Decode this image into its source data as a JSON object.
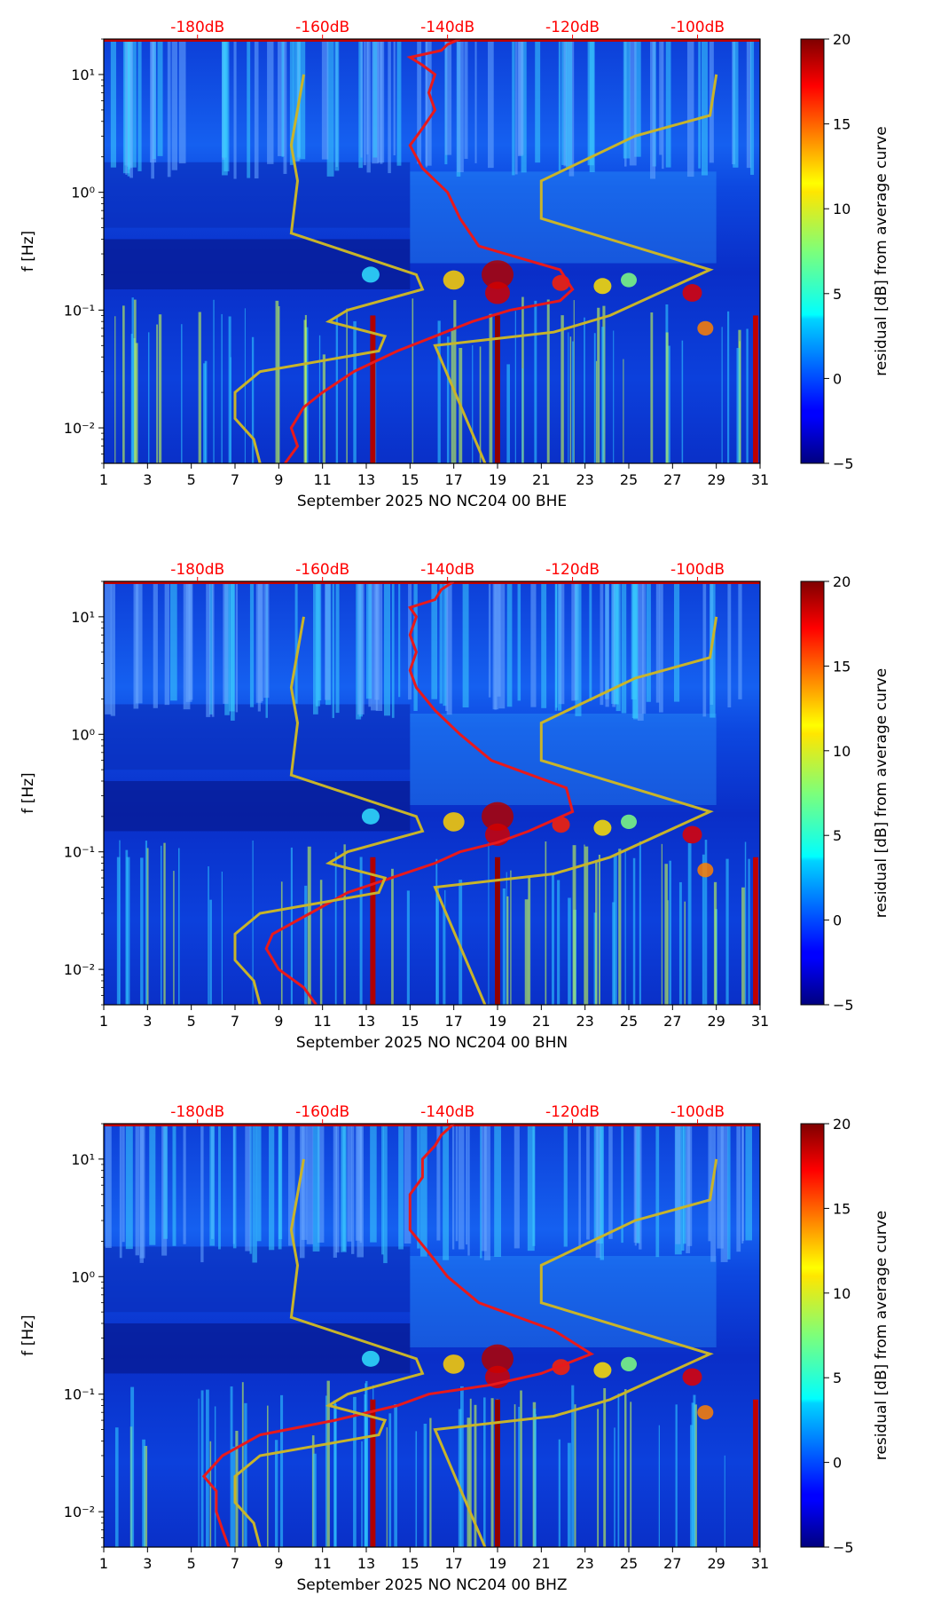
{
  "chart_data": [
    {
      "type": "heatmap",
      "title": "",
      "xlabel": "September 2025 NO NC204 00 BHE",
      "ylabel": "f [Hz]",
      "x_ticks": [
        "1",
        "3",
        "5",
        "7",
        "9",
        "11",
        "13",
        "15",
        "17",
        "19",
        "21",
        "23",
        "25",
        "27",
        "29",
        "31"
      ],
      "xlim": [
        1,
        31
      ],
      "y_scale": "log",
      "ylim": [
        0.005,
        20
      ],
      "y_ticks": [
        {
          "value": 0.01,
          "label": "10⁻²"
        },
        {
          "value": 0.1,
          "label": "10⁻¹"
        },
        {
          "value": 1,
          "label": "10⁰"
        },
        {
          "value": 10,
          "label": "10¹"
        }
      ],
      "top_axis_ticks": [
        "-180dB",
        "-160dB",
        "-140dB",
        "-120dB",
        "-100dB"
      ],
      "top_axis_db_values": [
        -180,
        -160,
        -140,
        -120,
        -100
      ],
      "colorbar": {
        "label": "residual [dB] from average curve",
        "range": [
          -5,
          20
        ],
        "ticks": [
          "−5",
          "0",
          "5",
          "10",
          "15",
          "20"
        ]
      },
      "series": [
        {
          "name": "average PSD (red)",
          "color": "#e8191b",
          "db": [
            -166,
            -164,
            -165,
            -163,
            -160,
            -155,
            -148,
            -142,
            -136,
            -130,
            -122,
            -120,
            -122,
            -135,
            -138,
            -140,
            -144,
            -146,
            -144,
            -142,
            -143,
            -142,
            -144,
            -146,
            -141,
            -140,
            -138
          ],
          "freq": [
            0.005,
            0.007,
            0.01,
            0.015,
            0.02,
            0.03,
            0.045,
            0.06,
            0.08,
            0.1,
            0.12,
            0.15,
            0.22,
            0.35,
            0.6,
            1.0,
            1.6,
            2.5,
            3.5,
            5,
            7,
            10,
            12,
            14,
            16,
            18,
            20
          ]
        },
        {
          "name": "NLNM (olive)",
          "color": "#c8b42a",
          "db": [
            -170,
            -171,
            -174,
            -174,
            -170,
            -151,
            -150,
            -159,
            -156,
            -144,
            -145,
            -165,
            -164,
            -165,
            -163
          ],
          "freq": [
            0.005,
            0.008,
            0.012,
            0.02,
            0.03,
            0.045,
            0.06,
            0.08,
            0.1,
            0.15,
            0.2,
            0.45,
            1.25,
            2.5,
            10
          ]
        },
        {
          "name": "NHNM (olive)",
          "color": "#c8b42a",
          "db": [
            -134,
            -142,
            -123,
            -114,
            -98,
            -125,
            -125,
            -110,
            -98,
            -97
          ],
          "freq": [
            0.005,
            0.05,
            0.065,
            0.09,
            0.22,
            0.6,
            1.25,
            3,
            4.5,
            10
          ]
        }
      ]
    },
    {
      "type": "heatmap",
      "title": "",
      "xlabel": "September 2025 NO NC204 00 BHN",
      "ylabel": "f [Hz]",
      "x_ticks": [
        "1",
        "3",
        "5",
        "7",
        "9",
        "11",
        "13",
        "15",
        "17",
        "19",
        "21",
        "23",
        "25",
        "27",
        "29",
        "31"
      ],
      "xlim": [
        1,
        31
      ],
      "y_scale": "log",
      "ylim": [
        0.005,
        20
      ],
      "y_ticks": [
        {
          "value": 0.01,
          "label": "10⁻²"
        },
        {
          "value": 0.1,
          "label": "10⁻¹"
        },
        {
          "value": 1,
          "label": "10⁰"
        },
        {
          "value": 10,
          "label": "10¹"
        }
      ],
      "top_axis_ticks": [
        "-180dB",
        "-160dB",
        "-140dB",
        "-120dB",
        "-100dB"
      ],
      "top_axis_db_values": [
        -180,
        -160,
        -140,
        -120,
        -100
      ],
      "colorbar": {
        "label": "residual [dB] from average curve",
        "range": [
          -5,
          20
        ],
        "ticks": [
          "−5",
          "0",
          "5",
          "10",
          "15",
          "20"
        ]
      },
      "series": [
        {
          "name": "average PSD (red)",
          "color": "#e8191b",
          "db": [
            -161,
            -163,
            -167,
            -169,
            -168,
            -162,
            -156,
            -149,
            -142,
            -138,
            -132,
            -127,
            -120,
            -121,
            -133,
            -138,
            -142,
            -145,
            -146,
            -145,
            -146,
            -145,
            -146,
            -142,
            -141,
            -139
          ],
          "freq": [
            0.005,
            0.007,
            0.01,
            0.015,
            0.02,
            0.03,
            0.045,
            0.06,
            0.08,
            0.1,
            0.12,
            0.15,
            0.22,
            0.35,
            0.6,
            1.0,
            1.6,
            2.5,
            3.5,
            5,
            7,
            10,
            12,
            14,
            17,
            20
          ]
        },
        {
          "name": "NLNM (olive)",
          "color": "#c8b42a",
          "db": [
            -170,
            -171,
            -174,
            -174,
            -170,
            -151,
            -150,
            -159,
            -156,
            -144,
            -145,
            -165,
            -164,
            -165,
            -163
          ],
          "freq": [
            0.005,
            0.008,
            0.012,
            0.02,
            0.03,
            0.045,
            0.06,
            0.08,
            0.1,
            0.15,
            0.2,
            0.45,
            1.25,
            2.5,
            10
          ]
        },
        {
          "name": "NHNM (olive)",
          "color": "#c8b42a",
          "db": [
            -134,
            -142,
            -123,
            -114,
            -98,
            -125,
            -125,
            -110,
            -98,
            -97
          ],
          "freq": [
            0.005,
            0.05,
            0.065,
            0.09,
            0.22,
            0.6,
            1.25,
            3,
            4.5,
            10
          ]
        }
      ]
    },
    {
      "type": "heatmap",
      "title": "",
      "xlabel": "September 2025 NO NC204 00 BHZ",
      "ylabel": "f [Hz]",
      "x_ticks": [
        "1",
        "3",
        "5",
        "7",
        "9",
        "11",
        "13",
        "15",
        "17",
        "19",
        "21",
        "23",
        "25",
        "27",
        "29",
        "31"
      ],
      "xlim": [
        1,
        31
      ],
      "y_scale": "log",
      "ylim": [
        0.005,
        20
      ],
      "y_ticks": [
        {
          "value": 0.01,
          "label": "10⁻²"
        },
        {
          "value": 0.1,
          "label": "10⁻¹"
        },
        {
          "value": 1,
          "label": "10⁰"
        },
        {
          "value": 10,
          "label": "10¹"
        }
      ],
      "top_axis_ticks": [
        "-180dB",
        "-160dB",
        "-140dB",
        "-120dB",
        "-100dB"
      ],
      "top_axis_db_values": [
        -180,
        -160,
        -140,
        -120,
        -100
      ],
      "colorbar": {
        "label": "residual [dB] from average curve",
        "range": [
          -5,
          20
        ],
        "ticks": [
          "−5",
          "0",
          "5",
          "10",
          "15",
          "20"
        ]
      },
      "series": [
        {
          "name": "average PSD (red)",
          "color": "#e8191b",
          "db": [
            -175,
            -176,
            -177,
            -177,
            -179,
            -176,
            -170,
            -158,
            -148,
            -143,
            -133,
            -125,
            -117,
            -123,
            -135,
            -140,
            -143,
            -146,
            -146,
            -146,
            -144,
            -144,
            -142,
            -141,
            -139
          ],
          "freq": [
            0.005,
            0.007,
            0.01,
            0.015,
            0.02,
            0.03,
            0.045,
            0.06,
            0.08,
            0.1,
            0.12,
            0.15,
            0.22,
            0.35,
            0.6,
            1.0,
            1.6,
            2.5,
            3.5,
            5,
            7,
            10,
            13,
            16,
            20
          ]
        },
        {
          "name": "NLNM (olive)",
          "color": "#c8b42a",
          "db": [
            -170,
            -171,
            -174,
            -174,
            -170,
            -151,
            -150,
            -159,
            -156,
            -144,
            -145,
            -165,
            -164,
            -165,
            -163
          ],
          "freq": [
            0.005,
            0.008,
            0.012,
            0.02,
            0.03,
            0.045,
            0.06,
            0.08,
            0.1,
            0.15,
            0.2,
            0.45,
            1.25,
            2.5,
            10
          ]
        },
        {
          "name": "NHNM (olive)",
          "color": "#c8b42a",
          "db": [
            -134,
            -142,
            -123,
            -114,
            -98,
            -125,
            -125,
            -110,
            -98,
            -97
          ],
          "freq": [
            0.005,
            0.05,
            0.065,
            0.09,
            0.22,
            0.6,
            1.25,
            3,
            4.5,
            10
          ]
        }
      ]
    }
  ]
}
